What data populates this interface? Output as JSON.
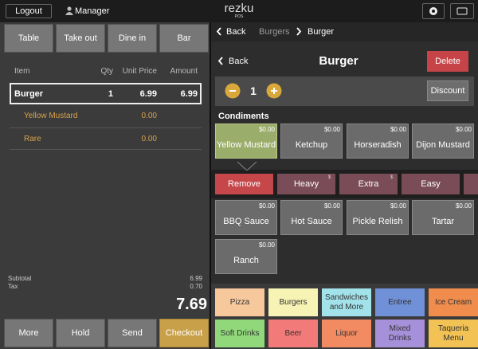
{
  "top_bar": {
    "logout": "Logout",
    "user": "Manager",
    "logo": "rezku",
    "logo_sub": "POS"
  },
  "order_types": [
    "Table",
    "Take out",
    "Dine in",
    "Bar"
  ],
  "order": {
    "columns": [
      "Item",
      "Qty",
      "Unit Price",
      "Amount"
    ],
    "items": [
      {
        "name": "Burger",
        "qty": "1",
        "unit_price": "6.99",
        "amount": "6.99"
      }
    ],
    "modifiers": [
      {
        "name": "Yellow Mustard",
        "price": "0.00"
      },
      {
        "name": "Rare",
        "price": "0.00"
      }
    ]
  },
  "totals": {
    "subtotal_label": "Subtotal",
    "subtotal": "6.99",
    "tax_label": "Tax",
    "tax": "0.70",
    "total": "7.69"
  },
  "actions": [
    "More",
    "Hold",
    "Send",
    "Checkout"
  ],
  "breadcrumb": {
    "back": "Back",
    "parent": "Burgers",
    "current": "Burger"
  },
  "item_header": {
    "back": "Back",
    "title": "Burger",
    "delete": "Delete"
  },
  "quantity": {
    "value": "1",
    "discount": "Discount"
  },
  "condiments": {
    "title": "Condiments",
    "options": [
      {
        "name": "Yellow Mustard",
        "price": "$0.00",
        "selected": true
      },
      {
        "name": "Ketchup",
        "price": "$0.00"
      },
      {
        "name": "Horseradish",
        "price": "$0.00"
      },
      {
        "name": "Dijon Mustard",
        "price": "$0.00"
      },
      {
        "name": "BBQ Sauce",
        "price": "$0.00"
      },
      {
        "name": "Hot Sauce",
        "price": "$0.00"
      },
      {
        "name": "Pickle Relish",
        "price": "$0.00"
      },
      {
        "name": "Tartar",
        "price": "$0.00"
      },
      {
        "name": "Ranch",
        "price": "$0.00"
      }
    ]
  },
  "modifier_options": [
    {
      "name": "Remove",
      "color": "#c5474a"
    },
    {
      "name": "Heavy",
      "marker": "$",
      "color": "#7a4c58"
    },
    {
      "name": "Extra",
      "marker": "$",
      "color": "#7a4c58"
    },
    {
      "name": "Easy",
      "color": "#7a4c58"
    }
  ],
  "categories": [
    {
      "name": "Pizza",
      "color": "#f7c89c"
    },
    {
      "name": "Burgers",
      "color": "#f6f3b4"
    },
    {
      "name": "Sandwiches and More",
      "color": "#a2e2ea"
    },
    {
      "name": "Entree",
      "color": "#7090d8"
    },
    {
      "name": "Ice Cream",
      "color": "#f08c4c"
    },
    {
      "name": "Soft Drinks",
      "color": "#90d87a"
    },
    {
      "name": "Beer",
      "color": "#f27a78"
    },
    {
      "name": "Liquor",
      "color": "#f28a62"
    },
    {
      "name": "Mixed Drinks",
      "color": "#a690da"
    },
    {
      "name": "Taqueria Menu",
      "color": "#f2c254"
    }
  ]
}
